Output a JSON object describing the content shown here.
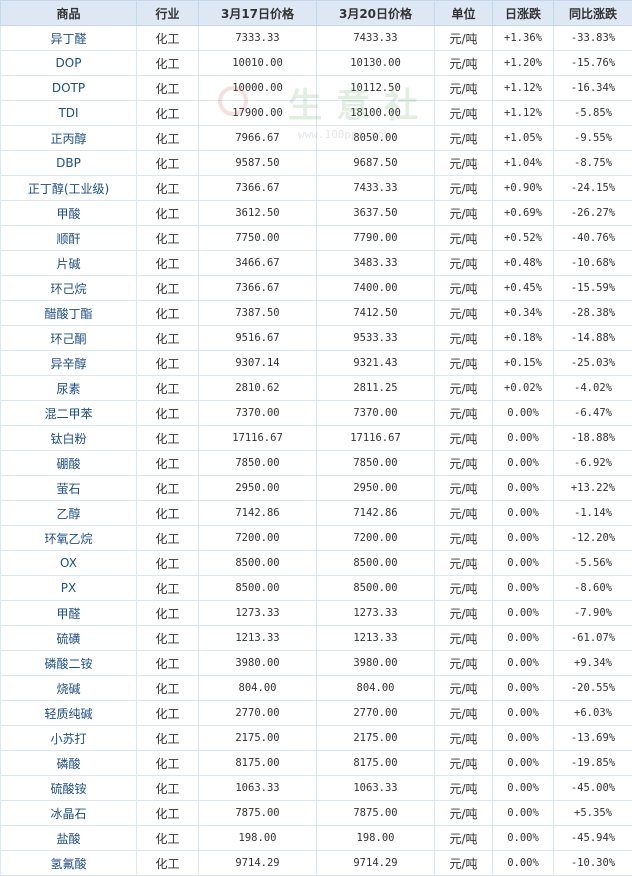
{
  "headers": [
    "商品",
    "行业",
    "3月17日价格",
    "3月20日价格",
    "单位",
    "日涨跌",
    "同比涨跌"
  ],
  "watermark": {
    "text": "生意社",
    "url": "www.100ppi.com"
  },
  "colors": {
    "up": "#e0161b",
    "down": "#1d7a1d",
    "header_bg": "#dde8f4",
    "name_link": "#1c4e8a"
  },
  "rows": [
    {
      "name": "异丁醛",
      "industry": "化工",
      "p1": "7333.33",
      "p2": "7433.33",
      "unit": "元/吨",
      "daily": "+1.36%",
      "yoy": "-33.83%"
    },
    {
      "name": "DOP",
      "industry": "化工",
      "p1": "10010.00",
      "p2": "10130.00",
      "unit": "元/吨",
      "daily": "+1.20%",
      "yoy": "-15.76%"
    },
    {
      "name": "DOTP",
      "industry": "化工",
      "p1": "10000.00",
      "p2": "10112.50",
      "unit": "元/吨",
      "daily": "+1.12%",
      "yoy": "-16.34%"
    },
    {
      "name": "TDI",
      "industry": "化工",
      "p1": "17900.00",
      "p2": "18100.00",
      "unit": "元/吨",
      "daily": "+1.12%",
      "yoy": "-5.85%"
    },
    {
      "name": "正丙醇",
      "industry": "化工",
      "p1": "7966.67",
      "p2": "8050.00",
      "unit": "元/吨",
      "daily": "+1.05%",
      "yoy": "-9.55%"
    },
    {
      "name": "DBP",
      "industry": "化工",
      "p1": "9587.50",
      "p2": "9687.50",
      "unit": "元/吨",
      "daily": "+1.04%",
      "yoy": "-8.75%"
    },
    {
      "name": "正丁醇(工业级)",
      "industry": "化工",
      "p1": "7366.67",
      "p2": "7433.33",
      "unit": "元/吨",
      "daily": "+0.90%",
      "yoy": "-24.15%"
    },
    {
      "name": "甲酸",
      "industry": "化工",
      "p1": "3612.50",
      "p2": "3637.50",
      "unit": "元/吨",
      "daily": "+0.69%",
      "yoy": "-26.27%"
    },
    {
      "name": "顺酐",
      "industry": "化工",
      "p1": "7750.00",
      "p2": "7790.00",
      "unit": "元/吨",
      "daily": "+0.52%",
      "yoy": "-40.76%"
    },
    {
      "name": "片碱",
      "industry": "化工",
      "p1": "3466.67",
      "p2": "3483.33",
      "unit": "元/吨",
      "daily": "+0.48%",
      "yoy": "-10.68%"
    },
    {
      "name": "环己烷",
      "industry": "化工",
      "p1": "7366.67",
      "p2": "7400.00",
      "unit": "元/吨",
      "daily": "+0.45%",
      "yoy": "-15.59%"
    },
    {
      "name": "醋酸丁酯",
      "industry": "化工",
      "p1": "7387.50",
      "p2": "7412.50",
      "unit": "元/吨",
      "daily": "+0.34%",
      "yoy": "-28.38%"
    },
    {
      "name": "环己酮",
      "industry": "化工",
      "p1": "9516.67",
      "p2": "9533.33",
      "unit": "元/吨",
      "daily": "+0.18%",
      "yoy": "-14.88%"
    },
    {
      "name": "异辛醇",
      "industry": "化工",
      "p1": "9307.14",
      "p2": "9321.43",
      "unit": "元/吨",
      "daily": "+0.15%",
      "yoy": "-25.03%"
    },
    {
      "name": "尿素",
      "industry": "化工",
      "p1": "2810.62",
      "p2": "2811.25",
      "unit": "元/吨",
      "daily": "+0.02%",
      "yoy": "-4.02%"
    },
    {
      "name": "混二甲苯",
      "industry": "化工",
      "p1": "7370.00",
      "p2": "7370.00",
      "unit": "元/吨",
      "daily": "0.00%",
      "yoy": "-6.47%"
    },
    {
      "name": "钛白粉",
      "industry": "化工",
      "p1": "17116.67",
      "p2": "17116.67",
      "unit": "元/吨",
      "daily": "0.00%",
      "yoy": "-18.88%"
    },
    {
      "name": "硼酸",
      "industry": "化工",
      "p1": "7850.00",
      "p2": "7850.00",
      "unit": "元/吨",
      "daily": "0.00%",
      "yoy": "-6.92%"
    },
    {
      "name": "萤石",
      "industry": "化工",
      "p1": "2950.00",
      "p2": "2950.00",
      "unit": "元/吨",
      "daily": "0.00%",
      "yoy": "+13.22%"
    },
    {
      "name": "乙醇",
      "industry": "化工",
      "p1": "7142.86",
      "p2": "7142.86",
      "unit": "元/吨",
      "daily": "0.00%",
      "yoy": "-1.14%"
    },
    {
      "name": "环氧乙烷",
      "industry": "化工",
      "p1": "7200.00",
      "p2": "7200.00",
      "unit": "元/吨",
      "daily": "0.00%",
      "yoy": "-12.20%"
    },
    {
      "name": "OX",
      "industry": "化工",
      "p1": "8500.00",
      "p2": "8500.00",
      "unit": "元/吨",
      "daily": "0.00%",
      "yoy": "-5.56%"
    },
    {
      "name": "PX",
      "industry": "化工",
      "p1": "8500.00",
      "p2": "8500.00",
      "unit": "元/吨",
      "daily": "0.00%",
      "yoy": "-8.60%"
    },
    {
      "name": "甲醛",
      "industry": "化工",
      "p1": "1273.33",
      "p2": "1273.33",
      "unit": "元/吨",
      "daily": "0.00%",
      "yoy": "-7.90%"
    },
    {
      "name": "硫磺",
      "industry": "化工",
      "p1": "1213.33",
      "p2": "1213.33",
      "unit": "元/吨",
      "daily": "0.00%",
      "yoy": "-61.07%"
    },
    {
      "name": "磷酸二铵",
      "industry": "化工",
      "p1": "3980.00",
      "p2": "3980.00",
      "unit": "元/吨",
      "daily": "0.00%",
      "yoy": "+9.34%"
    },
    {
      "name": "烧碱",
      "industry": "化工",
      "p1": "804.00",
      "p2": "804.00",
      "unit": "元/吨",
      "daily": "0.00%",
      "yoy": "-20.55%"
    },
    {
      "name": "轻质纯碱",
      "industry": "化工",
      "p1": "2770.00",
      "p2": "2770.00",
      "unit": "元/吨",
      "daily": "0.00%",
      "yoy": "+6.03%"
    },
    {
      "name": "小苏打",
      "industry": "化工",
      "p1": "2175.00",
      "p2": "2175.00",
      "unit": "元/吨",
      "daily": "0.00%",
      "yoy": "-13.69%"
    },
    {
      "name": "磷酸",
      "industry": "化工",
      "p1": "8175.00",
      "p2": "8175.00",
      "unit": "元/吨",
      "daily": "0.00%",
      "yoy": "-19.85%"
    },
    {
      "name": "硫酸铵",
      "industry": "化工",
      "p1": "1063.33",
      "p2": "1063.33",
      "unit": "元/吨",
      "daily": "0.00%",
      "yoy": "-45.00%"
    },
    {
      "name": "冰晶石",
      "industry": "化工",
      "p1": "7875.00",
      "p2": "7875.00",
      "unit": "元/吨",
      "daily": "0.00%",
      "yoy": "+5.35%"
    },
    {
      "name": "盐酸",
      "industry": "化工",
      "p1": "198.00",
      "p2": "198.00",
      "unit": "元/吨",
      "daily": "0.00%",
      "yoy": "-45.94%"
    },
    {
      "name": "氢氟酸",
      "industry": "化工",
      "p1": "9714.29",
      "p2": "9714.29",
      "unit": "元/吨",
      "daily": "0.00%",
      "yoy": "-10.30%"
    }
  ]
}
